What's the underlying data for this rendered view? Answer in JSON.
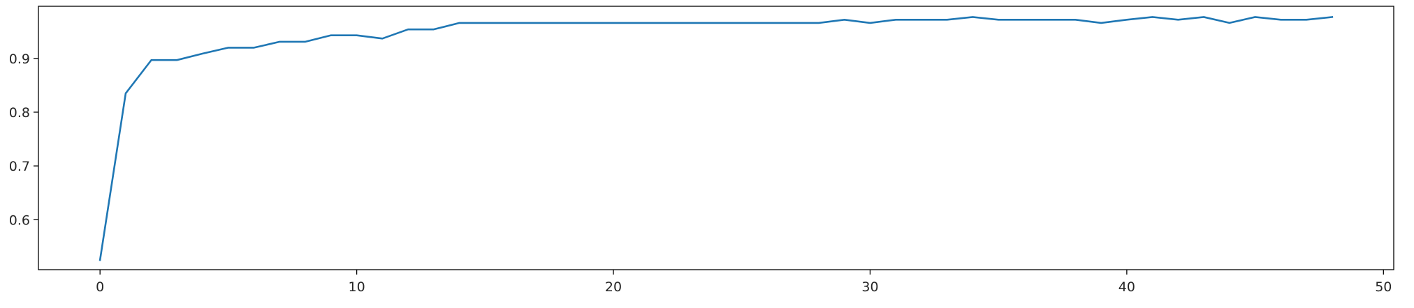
{
  "chart_data": {
    "type": "line",
    "title": "",
    "xlabel": "",
    "ylabel": "",
    "xlim": [
      -2.4,
      50.4
    ],
    "ylim": [
      0.507,
      0.997
    ],
    "xticks": [
      0,
      10,
      20,
      30,
      40,
      50
    ],
    "yticks": [
      0.6,
      0.7,
      0.8,
      0.9
    ],
    "xtick_labels": [
      "0",
      "10",
      "20",
      "30",
      "40",
      "50"
    ],
    "ytick_labels": [
      "0.6",
      "0.7",
      "0.8",
      "0.9"
    ],
    "grid": false,
    "series": [
      {
        "color": "#1f77b4",
        "x": [
          0,
          1,
          2,
          3,
          4,
          5,
          6,
          7,
          8,
          9,
          10,
          11,
          12,
          13,
          14,
          15,
          16,
          17,
          18,
          19,
          20,
          21,
          22,
          23,
          24,
          25,
          26,
          27,
          28,
          29,
          30,
          31,
          32,
          33,
          34,
          35,
          36,
          37,
          38,
          39,
          40,
          41,
          42,
          43,
          44,
          45,
          46,
          47,
          48
        ],
        "y": [
          0.525,
          0.835,
          0.897,
          0.897,
          0.909,
          0.92,
          0.92,
          0.931,
          0.931,
          0.943,
          0.943,
          0.937,
          0.954,
          0.954,
          0.966,
          0.966,
          0.966,
          0.966,
          0.966,
          0.966,
          0.966,
          0.966,
          0.966,
          0.966,
          0.966,
          0.966,
          0.966,
          0.966,
          0.966,
          0.972,
          0.966,
          0.972,
          0.972,
          0.972,
          0.977,
          0.972,
          0.972,
          0.972,
          0.972,
          0.966,
          0.972,
          0.977,
          0.972,
          0.977,
          0.966,
          0.977,
          0.972,
          0.972,
          0.977
        ]
      }
    ]
  }
}
